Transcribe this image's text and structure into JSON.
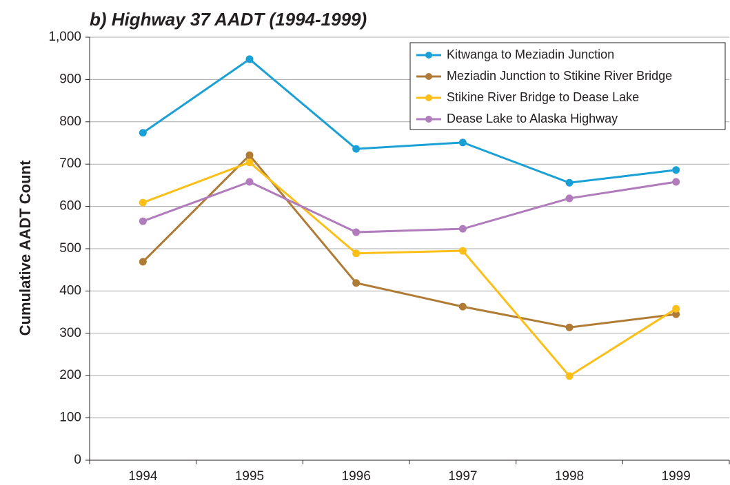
{
  "chart_data": {
    "type": "line",
    "title": "b)  Highway 37 AADT (1994-1999)",
    "y_label": "Cumulative AADT Count",
    "categories": [
      "1994",
      "1995",
      "1996",
      "1997",
      "1998",
      "1999"
    ],
    "series": [
      {
        "name": "Kitwanga to Meziadin Junction",
        "color": "#1aa0d4",
        "values": [
          774,
          948,
          736,
          751,
          656,
          686
        ]
      },
      {
        "name": "Meziadin Junction to Stikine River Bridge",
        "color": "#b07b35",
        "values": [
          469,
          721,
          419,
          363,
          314,
          345
        ]
      },
      {
        "name": "Stikine River Bridge to Dease Lake",
        "color": "#fbbf17",
        "values": [
          609,
          704,
          489,
          495,
          199,
          358
        ]
      },
      {
        "name": "Dease Lake to Alaska Highway",
        "color": "#b07cbb",
        "values": [
          565,
          658,
          539,
          547,
          619,
          658
        ]
      }
    ],
    "ylim": [
      0,
      1000
    ],
    "yticks": [
      0,
      100,
      200,
      300,
      400,
      500,
      600,
      700,
      800,
      900,
      {
        "value": 1000,
        "label": "1,000"
      }
    ],
    "grid": true,
    "legend": "upper right"
  }
}
